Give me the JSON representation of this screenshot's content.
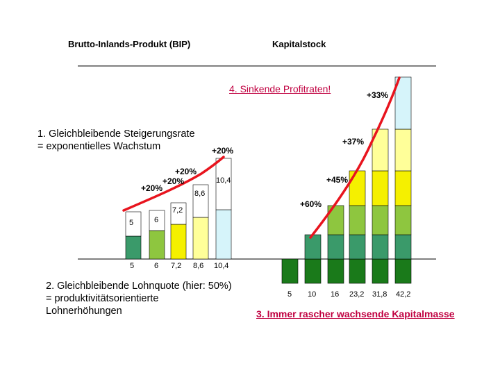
{
  "headers": {
    "left": "Brutto-Inlands-Produkt (BIP)",
    "right": "Kapitalstock"
  },
  "notes": {
    "growth_line1": "1. Gleichbleibende Steigerungsrate",
    "growth_line2": "= exponentielles Wachstum",
    "wage_line1": "2. Gleichbleibende Lohnquote (hier: 50%)",
    "wage_line2": "= produktivitätsorientierte",
    "wage_line3": "Lohnerhöhungen",
    "capital": "3. Immer rascher wachsende Kapitalmasse",
    "profit": "4. Sinkende Profitraten!"
  },
  "bip": {
    "values": [
      "5",
      "6",
      "7,2",
      "8,6",
      "10,4"
    ],
    "growth": [
      "+20%",
      "+20%",
      "+20%",
      "+20%"
    ]
  },
  "kapital": {
    "values": [
      "5",
      "10",
      "16",
      "23,2",
      "31,8",
      "42,2"
    ],
    "growth": [
      "+60%",
      "+45%",
      "+37%",
      "+33%"
    ]
  },
  "colors": {
    "dark_green": "#1a7a1a",
    "teal_green": "#3a9a6a",
    "olive_green": "#8ec63f",
    "yellow": "#f5f000",
    "pale_yellow": "#ffff99",
    "light_cyan": "#d6f4fa",
    "red_curve": "#e8141e"
  }
}
